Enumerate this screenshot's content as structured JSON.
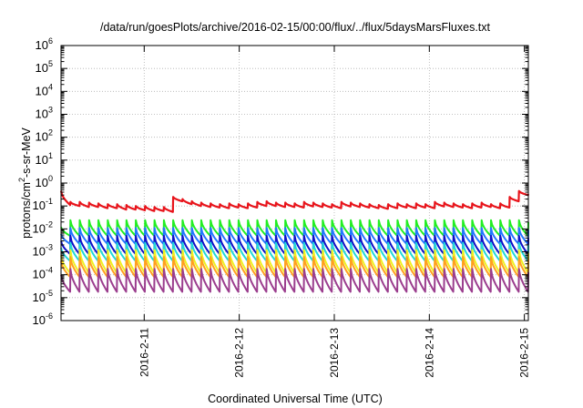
{
  "chart_data": {
    "type": "line",
    "title": "/data/run/goesPlots/archive/2016-02-15/00:00/flux/../flux/5daysMarsFluxes.txt",
    "xlabel": "Coordinated Universal Time (UTC)",
    "ylabel_parts": {
      "pre": "protons/cm",
      "sup": "2",
      "post": "-s-sr-MeV"
    },
    "yscale": "log",
    "ylim": [
      1e-06,
      1000000.0
    ],
    "yticks": [
      {
        "base": "10",
        "exp": "-6"
      },
      {
        "base": "10",
        "exp": "-5"
      },
      {
        "base": "10",
        "exp": "-4"
      },
      {
        "base": "10",
        "exp": "-3"
      },
      {
        "base": "10",
        "exp": "-2"
      },
      {
        "base": "10",
        "exp": "-1"
      },
      {
        "base": "10",
        "exp": "0"
      },
      {
        "base": "10",
        "exp": "1"
      },
      {
        "base": "10",
        "exp": "2"
      },
      {
        "base": "10",
        "exp": "3"
      },
      {
        "base": "10",
        "exp": "4"
      },
      {
        "base": "10",
        "exp": "5"
      },
      {
        "base": "10",
        "exp": "6"
      }
    ],
    "xlim": [
      "2016-02-10 03:00",
      "2016-02-15 01:00"
    ],
    "xticks": [
      "2016-2-11",
      "2016-2-12",
      "2016-2-13",
      "2016-2-14",
      "2016-2-15"
    ],
    "grid": true,
    "series": [
      {
        "color": "#e8141b",
        "width": 2.2,
        "peaks": [
          0.19,
          0.15,
          0.15,
          0.14,
          0.13,
          0.12,
          0.12,
          0.11,
          0.1,
          0.1,
          0.09,
          0.09,
          0.25,
          0.2,
          0.16,
          0.14,
          0.13,
          0.12,
          0.13,
          0.12,
          0.13,
          0.15,
          0.16,
          0.14,
          0.14,
          0.13,
          0.15,
          0.14,
          0.13,
          0.12,
          0.15,
          0.14,
          0.13,
          0.12,
          0.11,
          0.12,
          0.13,
          0.12,
          0.13,
          0.12,
          0.15,
          0.14,
          0.13,
          0.12,
          0.13,
          0.14,
          0.12,
          0.13,
          0.25,
          0.45
        ],
        "troughs": [
          0.11,
          0.1,
          0.09,
          0.09,
          0.08,
          0.08,
          0.07,
          0.07,
          0.065,
          0.06,
          0.06,
          0.055,
          0.16,
          0.12,
          0.1,
          0.09,
          0.085,
          0.08,
          0.085,
          0.08,
          0.085,
          0.1,
          0.1,
          0.09,
          0.09,
          0.085,
          0.095,
          0.09,
          0.085,
          0.08,
          0.095,
          0.09,
          0.085,
          0.08,
          0.075,
          0.08,
          0.085,
          0.08,
          0.085,
          0.08,
          0.095,
          0.09,
          0.085,
          0.08,
          0.085,
          0.09,
          0.08,
          0.085,
          0.16,
          0.3
        ],
        "start": 0.45,
        "end": 0.33
      },
      {
        "color": "#22ee22",
        "width": 2.0,
        "sawtooth": {
          "peak": 0.024,
          "trough": 0.005
        },
        "start": 0.012,
        "end": 0.02
      },
      {
        "color": "#2277ff",
        "width": 2.0,
        "sawtooth": {
          "peak": 0.011,
          "trough": 0.0022
        },
        "start": 0.006,
        "end": 0.009
      },
      {
        "color": "#1010c8",
        "width": 2.0,
        "sawtooth": {
          "peak": 0.005,
          "trough": 0.0008
        },
        "start": 0.003,
        "end": 0.004
      },
      {
        "color": "#22d8d8",
        "width": 2.0,
        "sawtooth": {
          "peak": 0.0025,
          "trough": 0.0004
        },
        "start": 0.0015,
        "end": 0.002
      },
      {
        "color": "#f0f020",
        "width": 2.0,
        "sawtooth": {
          "peak": 0.0012,
          "trough": 0.00012
        },
        "start": 0.0007,
        "end": 0.0009
      },
      {
        "color": "#ffa020",
        "width": 2.0,
        "sawtooth": {
          "peak": 0.0006,
          "trough": 8e-05
        },
        "start": 0.0004,
        "end": 0.0005
      },
      {
        "color": "#9b3d8e",
        "width": 2.0,
        "sawtooth": {
          "peak": 0.00018,
          "trough": 1.8e-05
        },
        "start": 0.0001,
        "end": 0.00013
      }
    ],
    "cycles": 50
  }
}
